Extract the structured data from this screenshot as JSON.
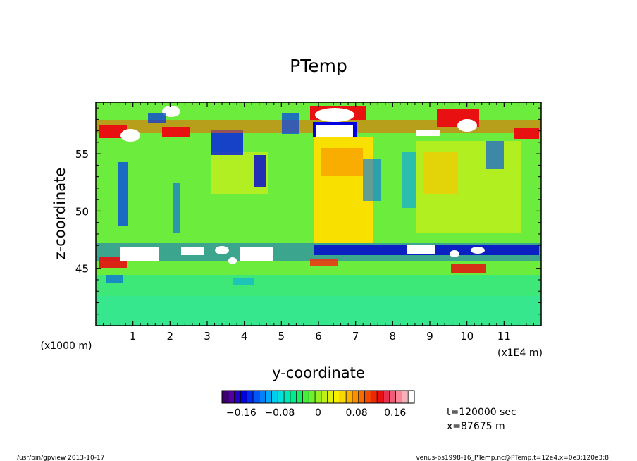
{
  "chart_data": {
    "type": "heatmap",
    "title": "PTemp",
    "xlabel": "y-coordinate",
    "ylabel": "z-coordinate",
    "x_unit_left": "(x1000 m)",
    "x_unit_right": "(x1E4 m)",
    "xlim": [
      0,
      120000
    ],
    "ylim": [
      40000,
      59500
    ],
    "x_ticks": [
      "1",
      "2",
      "3",
      "4",
      "5",
      "6",
      "7",
      "8",
      "9",
      "10",
      "11"
    ],
    "x_tick_values": [
      10000,
      20000,
      30000,
      40000,
      50000,
      60000,
      70000,
      80000,
      90000,
      100000,
      110000
    ],
    "y_ticks": [
      "45",
      "50",
      "55"
    ],
    "y_tick_values": [
      45000,
      50000,
      55000
    ],
    "colorbar": {
      "range": [
        -0.2,
        0.2
      ],
      "tick_labels": [
        "−0.16",
        "−0.08",
        "0",
        "0.08",
        "0.16"
      ],
      "tick_values": [
        -0.16,
        -0.08,
        0,
        0.08,
        0.16
      ],
      "colors": [
        "#3a0070",
        "#5000a0",
        "#2200c8",
        "#0000e6",
        "#0028f0",
        "#0055f5",
        "#0082f8",
        "#00aaf8",
        "#00ccf0",
        "#00e0dc",
        "#00e8b8",
        "#00ec8c",
        "#18f060",
        "#44f038",
        "#70f028",
        "#98f020",
        "#c0f018",
        "#e0f010",
        "#f8f000",
        "#f8d800",
        "#f8b400",
        "#f89000",
        "#f86c00",
        "#f84800",
        "#f02800",
        "#e81010",
        "#e83050",
        "#f05c78",
        "#f88898",
        "#f8b0b8",
        "#ffffff"
      ]
    },
    "annotations": {
      "time": "t=120000 sec",
      "position": "x=87675 m"
    }
  },
  "footer": {
    "left": "/usr/bin/gpview   2013-10-17",
    "right": "venus-bs1998-16_PTemp.nc@PTemp,t=12e4,x=0e3:120e3:8"
  }
}
